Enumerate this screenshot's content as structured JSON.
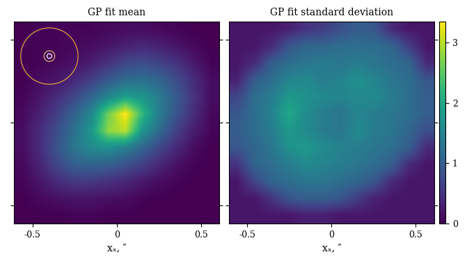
{
  "chart_data": [
    {
      "type": "heatmap",
      "title": "GP fit mean",
      "x_label": "xₓ, ″",
      "xlim": [
        -0.61,
        0.61
      ],
      "ylim": [
        -0.61,
        0.61
      ],
      "xticks": [
        -0.5,
        0,
        0.5
      ],
      "yticks": [
        -0.5,
        0,
        0.5
      ],
      "tick_labels": "x",
      "cells": [
        [
          0.5,
          0.6,
          0.6,
          0.6,
          0.6,
          0.7,
          0.8,
          0.8,
          0.7,
          0.6,
          0.5,
          0.5
        ],
        [
          0.5,
          0.6,
          0.6,
          0.7,
          0.8,
          1.0,
          1.3,
          1.5,
          1.3,
          1.0,
          0.7,
          0.5
        ],
        [
          0.5,
          0.6,
          0.7,
          0.9,
          1.2,
          1.8,
          2.4,
          2.6,
          2.3,
          1.8,
          1.1,
          0.6
        ],
        [
          0.5,
          0.8,
          1.0,
          1.5,
          2.2,
          3.0,
          3.6,
          3.8,
          3.4,
          2.6,
          1.6,
          0.8
        ],
        [
          0.6,
          1.0,
          1.6,
          2.4,
          3.4,
          4.6,
          5.6,
          5.2,
          4.2,
          3.0,
          1.8,
          0.8
        ],
        [
          0.7,
          1.3,
          2.2,
          3.3,
          4.6,
          7.5,
          9.5,
          6.4,
          4.2,
          2.8,
          1.6,
          0.7
        ],
        [
          0.8,
          1.6,
          2.6,
          3.8,
          5.2,
          8.0,
          8.6,
          5.2,
          3.6,
          2.2,
          1.2,
          0.6
        ],
        [
          0.8,
          1.6,
          2.8,
          4.0,
          4.8,
          5.0,
          4.4,
          3.4,
          2.4,
          1.5,
          0.8,
          0.5
        ],
        [
          0.7,
          1.4,
          2.4,
          3.2,
          3.4,
          3.2,
          2.8,
          2.2,
          1.5,
          0.9,
          0.6,
          0.5
        ],
        [
          0.6,
          1.0,
          1.6,
          2.0,
          2.0,
          1.8,
          1.5,
          1.1,
          0.8,
          0.6,
          0.5,
          0.5
        ],
        [
          0.5,
          0.7,
          0.9,
          1.0,
          1.0,
          0.9,
          0.8,
          0.6,
          0.5,
          0.5,
          0.5,
          0.5
        ],
        [
          0.5,
          0.5,
          0.5,
          0.6,
          0.6,
          0.5,
          0.5,
          0.5,
          0.5,
          0.5,
          0.5,
          0.5
        ]
      ]
    },
    {
      "type": "heatmap",
      "title": "GP fit standard deviation",
      "x_label": "xₓ, ″",
      "xlim": [
        -0.61,
        0.61
      ],
      "ylim": [
        -0.61,
        0.61
      ],
      "xticks": [
        -0.5,
        0,
        0.5
      ],
      "yticks": [
        -0.5,
        0,
        0.5
      ],
      "tick_labels": "x",
      "colorbar_range": [
        0,
        3.35
      ],
      "colorbar_ticks": [
        0,
        1,
        2,
        3
      ],
      "cells": [
        [
          0.2,
          0.2,
          0.2,
          0.3,
          0.5,
          0.6,
          0.8,
          1.0,
          0.9,
          0.4,
          0.2,
          0.2
        ],
        [
          0.2,
          0.2,
          0.4,
          0.9,
          1.1,
          1.1,
          1.2,
          1.2,
          1.2,
          1.1,
          0.6,
          0.2
        ],
        [
          0.2,
          0.4,
          1.0,
          1.2,
          1.3,
          1.4,
          1.3,
          1.4,
          1.3,
          1.2,
          1.1,
          0.4
        ],
        [
          0.3,
          1.0,
          1.2,
          1.5,
          1.6,
          1.4,
          1.5,
          1.7,
          1.5,
          1.3,
          1.2,
          0.9
        ],
        [
          0.7,
          1.2,
          1.4,
          1.8,
          1.7,
          1.6,
          1.5,
          1.6,
          1.6,
          1.4,
          1.2,
          1.0
        ],
        [
          0.9,
          1.2,
          1.5,
          2.0,
          1.6,
          1.4,
          1.3,
          1.5,
          1.4,
          1.3,
          1.2,
          1.0
        ],
        [
          1.0,
          1.2,
          1.4,
          1.8,
          1.6,
          1.4,
          1.3,
          1.6,
          1.4,
          1.3,
          1.1,
          0.8
        ],
        [
          0.9,
          1.1,
          1.3,
          1.7,
          1.8,
          1.6,
          1.5,
          1.4,
          1.3,
          1.2,
          1.0,
          0.4
        ],
        [
          0.5,
          1.1,
          1.2,
          1.4,
          1.6,
          1.5,
          1.4,
          1.3,
          1.2,
          1.0,
          0.4,
          0.2
        ],
        [
          0.2,
          0.7,
          1.1,
          1.2,
          1.3,
          1.3,
          1.2,
          1.1,
          0.9,
          0.4,
          0.2,
          0.2
        ],
        [
          0.2,
          0.2,
          0.5,
          0.9,
          1.0,
          1.0,
          0.9,
          0.6,
          0.3,
          0.2,
          0.2,
          0.2
        ],
        [
          0.2,
          0.2,
          0.2,
          0.2,
          0.3,
          0.3,
          0.2,
          0.2,
          0.2,
          0.2,
          0.2,
          0.2
        ]
      ]
    }
  ]
}
